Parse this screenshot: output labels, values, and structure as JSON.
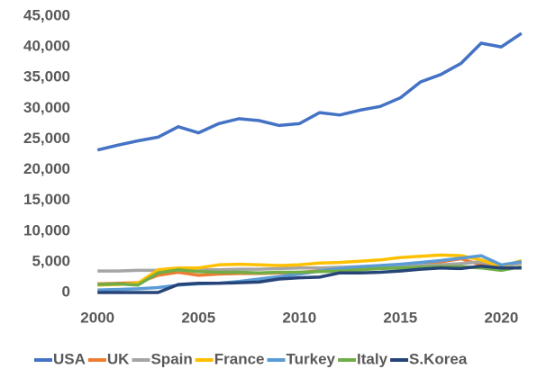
{
  "chart_data": {
    "type": "line",
    "x": [
      2000,
      2001,
      2002,
      2003,
      2004,
      2005,
      2006,
      2007,
      2008,
      2009,
      2010,
      2011,
      2012,
      2013,
      2014,
      2015,
      2016,
      2017,
      2018,
      2019,
      2020,
      2021
    ],
    "series": [
      {
        "name": "USA",
        "color": "#4472c4",
        "values": [
          23200,
          24000,
          24700,
          25300,
          27000,
          26000,
          27500,
          28300,
          28000,
          27200,
          27500,
          29300,
          28900,
          29700,
          30300,
          31700,
          34300,
          35500,
          37300,
          40600,
          40000,
          42200
        ]
      },
      {
        "name": "UK",
        "color": "#ed7d31",
        "values": [
          1400,
          1500,
          1600,
          2800,
          3300,
          2800,
          3000,
          3100,
          3100,
          3200,
          3300,
          3500,
          3600,
          3800,
          4000,
          4300,
          4700,
          5000,
          5500,
          4500,
          4200,
          4800
        ]
      },
      {
        "name": "Spain",
        "color": "#a5a5a5",
        "values": [
          3500,
          3500,
          3600,
          3600,
          3600,
          3700,
          3700,
          3800,
          3800,
          3900,
          4000,
          4000,
          4100,
          4200,
          4200,
          4300,
          4400,
          4500,
          4700,
          5000,
          4200,
          4800
        ]
      },
      {
        "name": "France",
        "color": "#ffc000",
        "values": [
          1200,
          1300,
          1500,
          3700,
          4000,
          4000,
          4500,
          4600,
          4500,
          4400,
          4500,
          4800,
          4900,
          5100,
          5300,
          5700,
          5900,
          6100,
          6000,
          5300,
          4200,
          5200
        ]
      },
      {
        "name": "Turkey",
        "color": "#5b9bd5",
        "values": [
          400,
          500,
          600,
          800,
          1200,
          1400,
          1500,
          1800,
          2200,
          2600,
          3000,
          3500,
          3900,
          4200,
          4400,
          4600,
          4900,
          5200,
          5600,
          6000,
          4500,
          5000
        ]
      },
      {
        "name": "Italy",
        "color": "#70ad47",
        "values": [
          1300,
          1400,
          1200,
          3200,
          3700,
          3400,
          3300,
          3300,
          3200,
          3300,
          3300,
          3400,
          3500,
          3700,
          3900,
          4000,
          4100,
          4200,
          4200,
          4000,
          3600,
          4200
        ]
      },
      {
        "name": "S.Korea",
        "color": "#264478",
        "values": [
          0,
          0,
          0,
          0,
          1300,
          1500,
          1500,
          1600,
          1700,
          2200,
          2400,
          2500,
          3200,
          3200,
          3300,
          3500,
          3800,
          4000,
          3900,
          4300,
          4000,
          4000
        ]
      }
    ],
    "xlim": [
      1999.5,
      2021.5
    ],
    "xticks": [
      2000,
      2005,
      2010,
      2015,
      2020
    ],
    "ylim": [
      0,
      45000
    ],
    "yticks": [
      0,
      {
        "value": 5000,
        "label": "5,000"
      },
      {
        "value": 10000,
        "label": "10,000"
      },
      {
        "value": 15000,
        "label": "15,000"
      },
      {
        "value": 20000,
        "label": "20,000"
      },
      {
        "value": 25000,
        "label": "25,000"
      },
      {
        "value": 30000,
        "label": "30,000"
      },
      {
        "value": 35000,
        "label": "35,000"
      },
      {
        "value": 40000,
        "label": "40,000"
      },
      {
        "value": 45000,
        "label": "45,000"
      }
    ],
    "legend": "bottom"
  }
}
